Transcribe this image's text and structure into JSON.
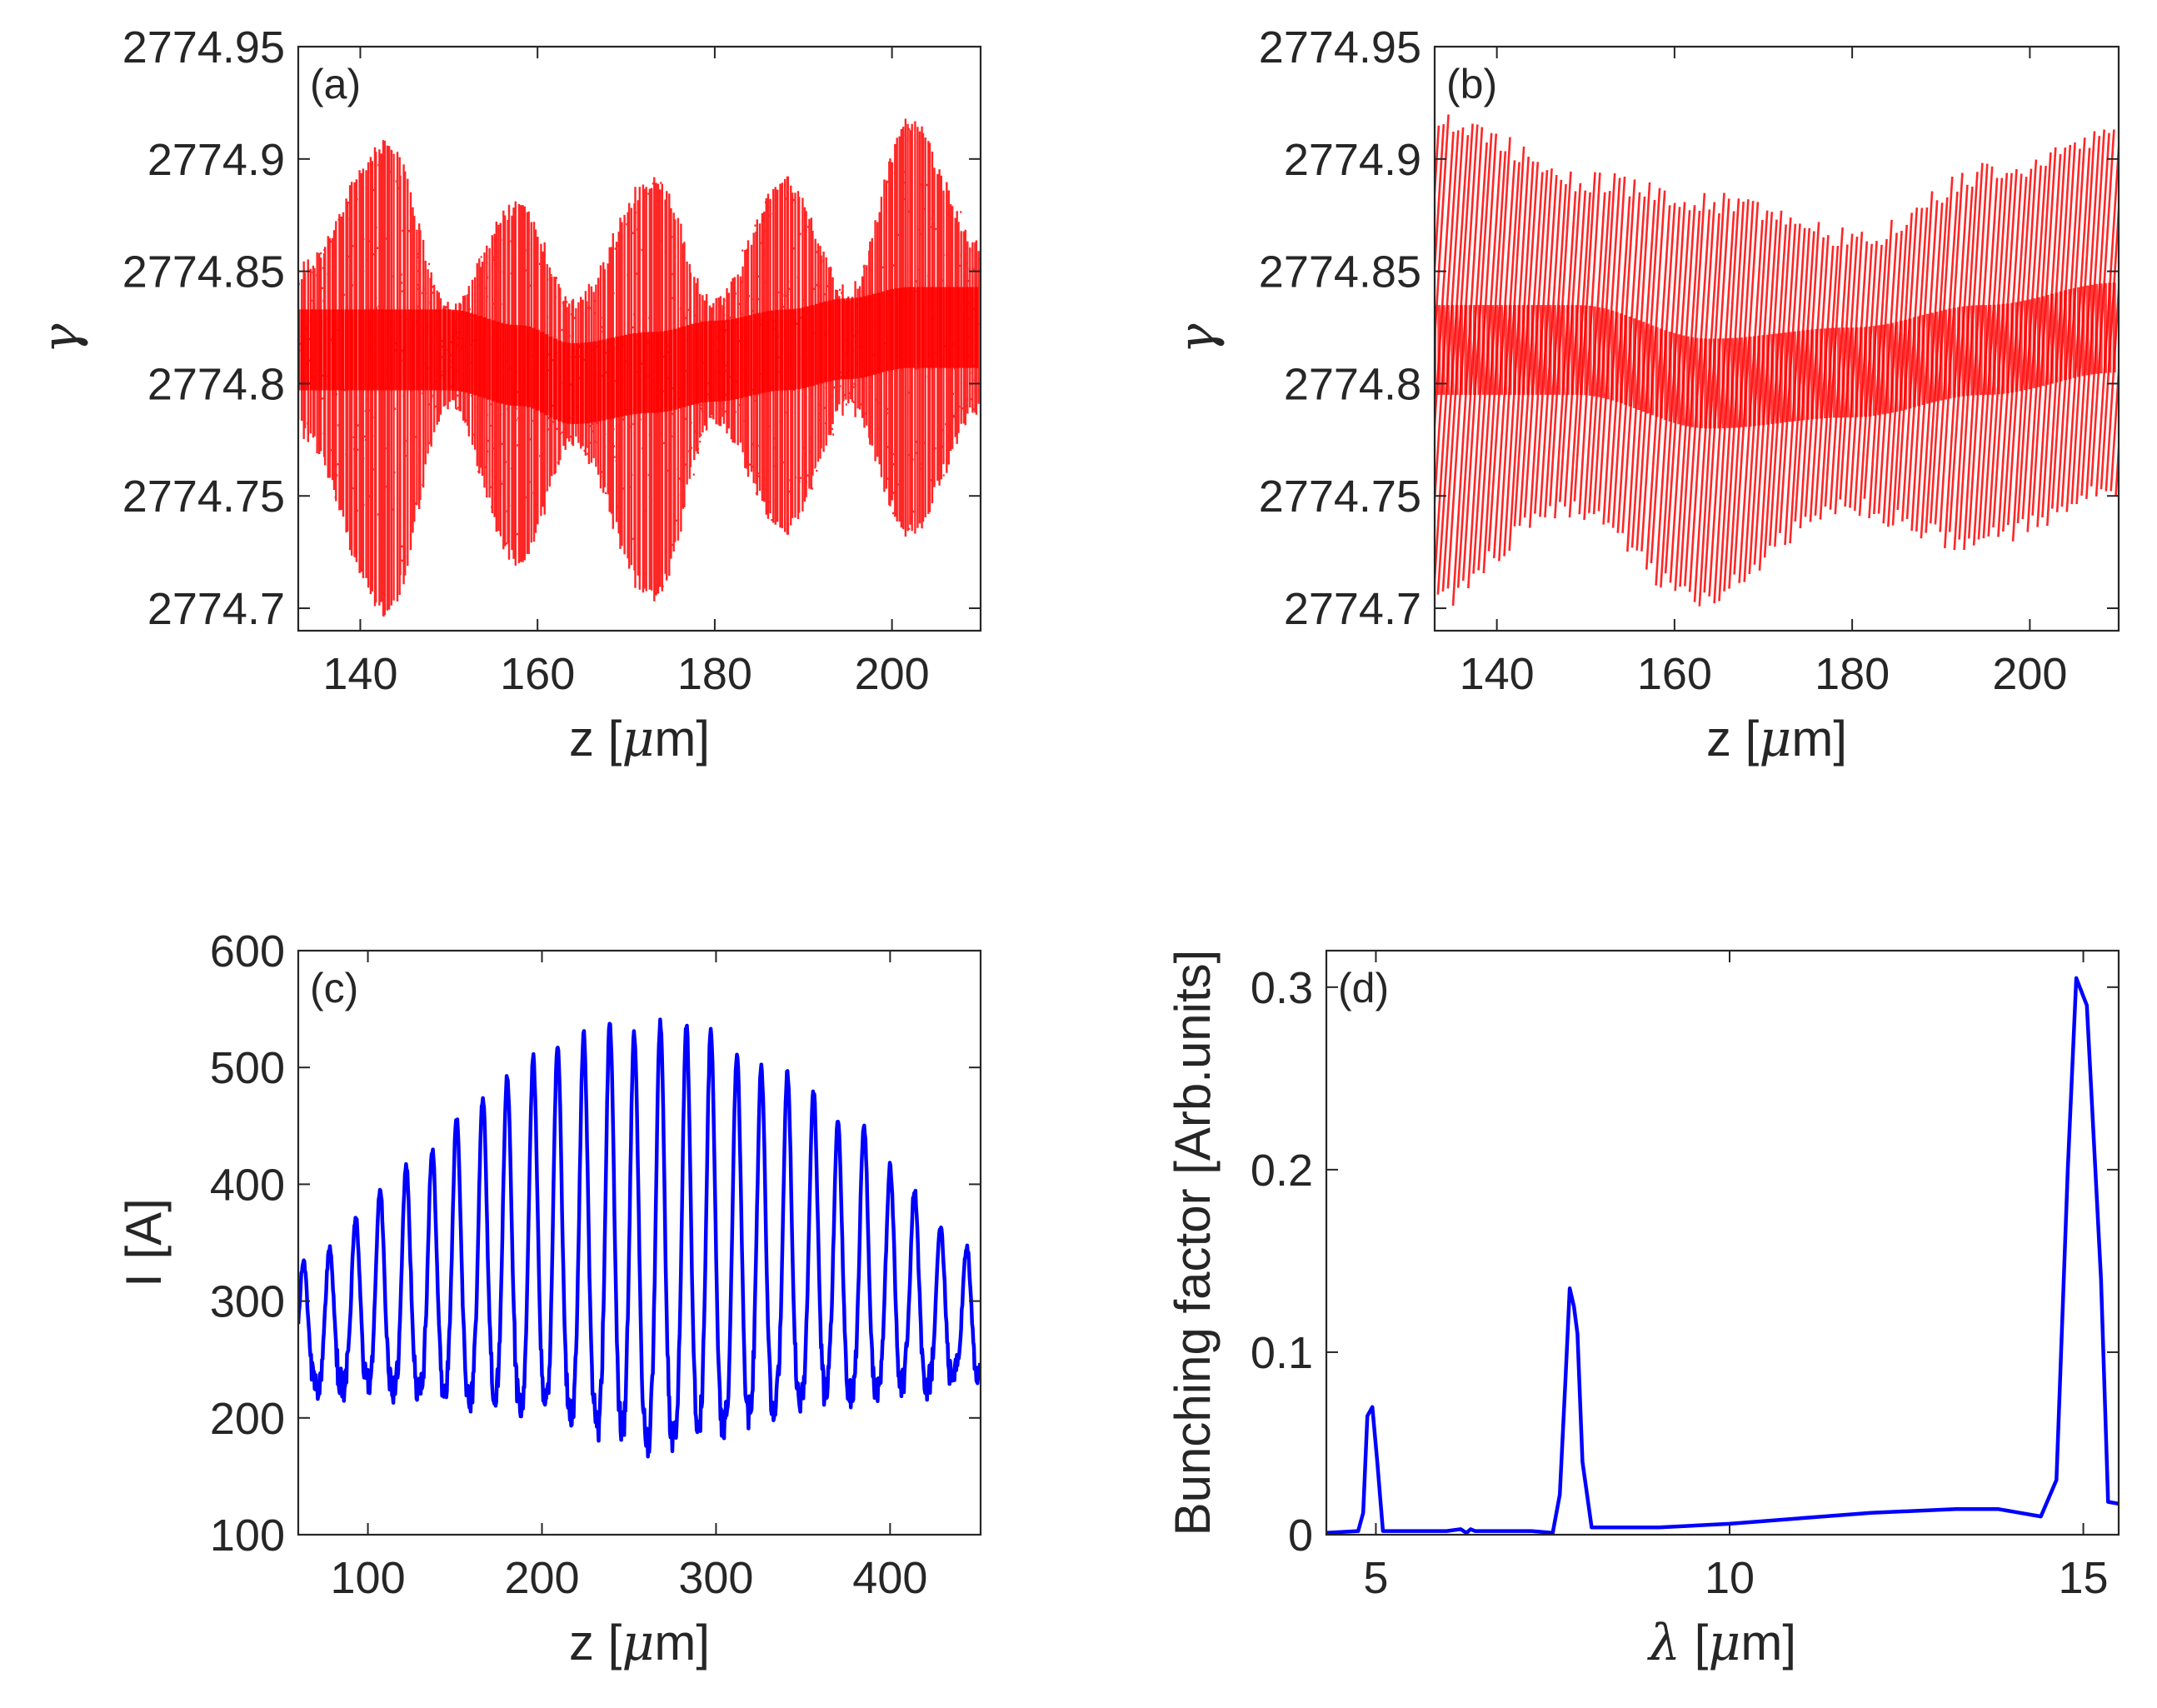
{
  "chart_data": [
    {
      "type": "scatter",
      "panel_label": "(a)",
      "xlabel": "z [μm]",
      "ylabel": "γ",
      "xlim": [
        133,
        210
      ],
      "ylim": [
        2774.69,
        2774.95
      ],
      "xticks": [
        140,
        160,
        180,
        200
      ],
      "yticks": [
        2774.7,
        2774.75,
        2774.8,
        2774.85,
        2774.9,
        2774.95
      ],
      "ytick_labels": [
        "2774.7",
        "2774.75",
        "2774.8",
        "2774.85",
        "2774.9",
        "2774.95"
      ],
      "color": "#ff0000",
      "pattern": "symmetric-vertical-streaks",
      "envelope_nodes": [
        {
          "z": 133,
          "center": 2774.815,
          "upper": 2774.85,
          "lower": 2774.78
        },
        {
          "z": 143,
          "center": 2774.815,
          "upper": 2774.905,
          "lower": 2774.7
        },
        {
          "z": 150,
          "center": 2774.815,
          "upper": 2774.835,
          "lower": 2774.79
        },
        {
          "z": 158,
          "center": 2774.808,
          "upper": 2774.88,
          "lower": 2774.72
        },
        {
          "z": 164,
          "center": 2774.8,
          "upper": 2774.835,
          "lower": 2774.775
        },
        {
          "z": 173,
          "center": 2774.805,
          "upper": 2774.89,
          "lower": 2774.705
        },
        {
          "z": 180,
          "center": 2774.81,
          "upper": 2774.835,
          "lower": 2774.785
        },
        {
          "z": 188,
          "center": 2774.815,
          "upper": 2774.89,
          "lower": 2774.735
        },
        {
          "z": 195,
          "center": 2774.82,
          "upper": 2774.84,
          "lower": 2774.79
        },
        {
          "z": 202,
          "center": 2774.825,
          "upper": 2774.915,
          "lower": 2774.735
        },
        {
          "z": 210,
          "center": 2774.825,
          "upper": 2774.86,
          "lower": 2774.79
        }
      ]
    },
    {
      "type": "scatter",
      "panel_label": "(b)",
      "xlabel": "z [μm]",
      "ylabel": "γ",
      "xlim": [
        133,
        210
      ],
      "ylim": [
        2774.69,
        2774.95
      ],
      "xticks": [
        140,
        160,
        180,
        200
      ],
      "yticks": [
        2774.7,
        2774.75,
        2774.8,
        2774.85,
        2774.9,
        2774.95
      ],
      "ytick_labels": [
        "2774.7",
        "2774.75",
        "2774.8",
        "2774.85",
        "2774.9",
        "2774.95"
      ],
      "color": "#ff0000",
      "pattern": "tilted-streaks",
      "envelope_nodes": [
        {
          "z": 133,
          "center": 2774.815,
          "upper": 2774.915,
          "lower": 2774.7
        },
        {
          "z": 149,
          "center": 2774.815,
          "upper": 2774.89,
          "lower": 2774.745
        },
        {
          "z": 164,
          "center": 2774.8,
          "upper": 2774.88,
          "lower": 2774.705
        },
        {
          "z": 180,
          "center": 2774.805,
          "upper": 2774.865,
          "lower": 2774.745
        },
        {
          "z": 195,
          "center": 2774.815,
          "upper": 2774.895,
          "lower": 2774.73
        },
        {
          "z": 210,
          "center": 2774.825,
          "upper": 2774.91,
          "lower": 2774.75
        }
      ]
    },
    {
      "type": "line",
      "panel_label": "(c)",
      "xlabel": "z [μm]",
      "ylabel": "I [A]",
      "xlim": [
        60,
        452
      ],
      "ylim": [
        100,
        600
      ],
      "xticks": [
        100,
        200,
        300,
        400
      ],
      "yticks": [
        100,
        200,
        300,
        400,
        500,
        600
      ],
      "color": "#0000ff",
      "series": [
        {
          "name": "current",
          "baseline_start": 240,
          "baseline_end": 225,
          "peak_z": [
            63,
            78,
            93,
            107,
            122,
            137,
            151,
            166,
            180,
            195,
            209,
            224,
            239,
            253,
            268,
            283,
            297,
            312,
            326,
            341,
            356,
            370,
            385,
            400,
            414,
            429,
            444
          ],
          "peak_I": [
            335,
            345,
            372,
            395,
            415,
            430,
            457,
            474,
            494,
            508,
            520,
            530,
            537,
            530,
            539,
            535,
            532,
            510,
            500,
            495,
            480,
            452,
            450,
            415,
            395,
            365,
            347
          ],
          "trough_I": [
            215,
            210,
            210,
            206,
            205,
            203,
            200,
            198,
            195,
            188,
            182,
            178,
            168,
            162,
            158,
            160,
            168,
            175,
            185,
            192,
            198,
            200,
            203,
            207,
            210,
            212,
            218
          ]
        }
      ]
    },
    {
      "type": "line",
      "panel_label": "(d)",
      "xlabel": "λ [μm]",
      "ylabel": "Bunching factor [Arb.units]",
      "xlim": [
        4.3,
        15.5
      ],
      "ylim": [
        0,
        0.32
      ],
      "xticks": [
        5,
        10,
        15
      ],
      "yticks": [
        0,
        0.1,
        0.2,
        0.3
      ],
      "color": "#0000ff",
      "series": [
        {
          "name": "bunching",
          "x": [
            4.3,
            4.75,
            4.82,
            4.88,
            4.95,
            5.02,
            5.1,
            5.2,
            5.5,
            6.0,
            6.2,
            6.28,
            6.34,
            6.4,
            6.7,
            7.2,
            7.5,
            7.6,
            7.68,
            7.74,
            7.8,
            7.85,
            7.92,
            8.05,
            9.0,
            10.0,
            11.0,
            12.0,
            13.2,
            13.8,
            14.1,
            14.4,
            14.62,
            14.78,
            14.9,
            15.05,
            15.25,
            15.35,
            15.5
          ],
          "y": [
            0.001,
            0.002,
            0.012,
            0.065,
            0.07,
            0.04,
            0.002,
            0.002,
            0.002,
            0.002,
            0.003,
            0.001,
            0.003,
            0.002,
            0.002,
            0.002,
            0.001,
            0.022,
            0.085,
            0.135,
            0.125,
            0.11,
            0.04,
            0.004,
            0.004,
            0.006,
            0.009,
            0.012,
            0.014,
            0.014,
            0.012,
            0.01,
            0.03,
            0.2,
            0.305,
            0.29,
            0.14,
            0.018,
            0.017
          ]
        }
      ]
    }
  ]
}
